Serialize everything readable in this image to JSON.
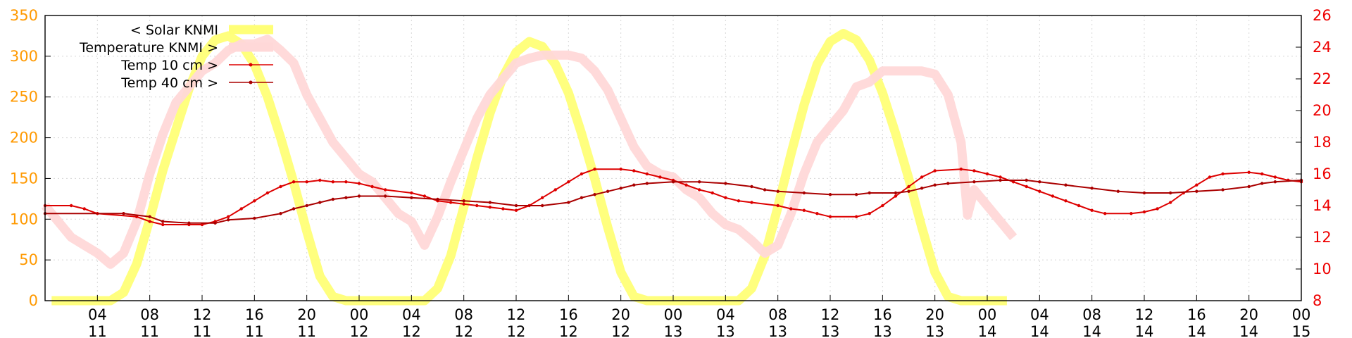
{
  "chart_data": {
    "type": "line",
    "y_left": {
      "range": [
        0,
        350
      ],
      "ticks": [
        0,
        50,
        100,
        150,
        200,
        250,
        300,
        350
      ],
      "color": "#ff9900"
    },
    "y_right": {
      "range": [
        8,
        26
      ],
      "ticks": [
        8,
        10,
        12,
        14,
        16,
        18,
        20,
        22,
        24,
        26
      ],
      "color": "#ee0000"
    },
    "x_range_hours": [
      0,
      96
    ],
    "x_ticks": [
      {
        "hour": 4,
        "time": "04",
        "day": "11"
      },
      {
        "hour": 8,
        "time": "08",
        "day": "11"
      },
      {
        "hour": 12,
        "time": "12",
        "day": "11"
      },
      {
        "hour": 16,
        "time": "16",
        "day": "11"
      },
      {
        "hour": 20,
        "time": "20",
        "day": "11"
      },
      {
        "hour": 24,
        "time": "00",
        "day": "12"
      },
      {
        "hour": 28,
        "time": "04",
        "day": "12"
      },
      {
        "hour": 32,
        "time": "08",
        "day": "12"
      },
      {
        "hour": 36,
        "time": "12",
        "day": "12"
      },
      {
        "hour": 40,
        "time": "16",
        "day": "12"
      },
      {
        "hour": 44,
        "time": "20",
        "day": "12"
      },
      {
        "hour": 48,
        "time": "00",
        "day": "13"
      },
      {
        "hour": 52,
        "time": "04",
        "day": "13"
      },
      {
        "hour": 56,
        "time": "08",
        "day": "13"
      },
      {
        "hour": 60,
        "time": "12",
        "day": "13"
      },
      {
        "hour": 64,
        "time": "16",
        "day": "13"
      },
      {
        "hour": 68,
        "time": "20",
        "day": "13"
      },
      {
        "hour": 72,
        "time": "00",
        "day": "14"
      },
      {
        "hour": 76,
        "time": "04",
        "day": "14"
      },
      {
        "hour": 80,
        "time": "08",
        "day": "14"
      },
      {
        "hour": 84,
        "time": "12",
        "day": "14"
      },
      {
        "hour": 88,
        "time": "16",
        "day": "14"
      },
      {
        "hour": 92,
        "time": "20",
        "day": "14"
      },
      {
        "hour": 96,
        "time": "00",
        "day": "15"
      }
    ],
    "grid": true,
    "legend_position": "top-left",
    "series": [
      {
        "name": "< Solar KNMI",
        "axis": "left",
        "color": "#ffff77",
        "style": "thick-line",
        "points": [
          [
            0.5,
            0
          ],
          [
            5,
            0
          ],
          [
            6,
            10
          ],
          [
            7,
            45
          ],
          [
            8,
            100
          ],
          [
            9,
            160
          ],
          [
            10,
            210
          ],
          [
            11,
            260
          ],
          [
            12,
            300
          ],
          [
            13,
            320
          ],
          [
            14,
            325
          ],
          [
            15,
            315
          ],
          [
            16,
            290
          ],
          [
            17,
            250
          ],
          [
            18,
            200
          ],
          [
            19,
            145
          ],
          [
            20,
            85
          ],
          [
            21,
            30
          ],
          [
            22,
            5
          ],
          [
            23,
            0
          ],
          [
            24,
            0
          ],
          [
            29,
            0
          ],
          [
            30,
            15
          ],
          [
            31,
            55
          ],
          [
            32,
            115
          ],
          [
            33,
            175
          ],
          [
            34,
            230
          ],
          [
            35,
            275
          ],
          [
            36,
            305
          ],
          [
            37,
            318
          ],
          [
            38,
            312
          ],
          [
            39,
            290
          ],
          [
            40,
            255
          ],
          [
            41,
            205
          ],
          [
            42,
            150
          ],
          [
            43,
            90
          ],
          [
            44,
            35
          ],
          [
            45,
            5
          ],
          [
            46,
            0
          ],
          [
            53,
            0
          ],
          [
            54,
            15
          ],
          [
            55,
            55
          ],
          [
            56,
            115
          ],
          [
            57,
            180
          ],
          [
            58,
            240
          ],
          [
            59,
            290
          ],
          [
            60,
            318
          ],
          [
            61,
            328
          ],
          [
            62,
            320
          ],
          [
            63,
            295
          ],
          [
            64,
            255
          ],
          [
            65,
            205
          ],
          [
            66,
            150
          ],
          [
            67,
            90
          ],
          [
            68,
            35
          ],
          [
            69,
            5
          ],
          [
            70,
            0
          ],
          [
            73.5,
            0
          ]
        ]
      },
      {
        "name": "Temperature KNMI >",
        "axis": "right",
        "color": "#ffd8d8",
        "style": "thick-line",
        "points": [
          [
            0,
            14
          ],
          [
            1,
            13
          ],
          [
            2,
            12
          ],
          [
            3,
            11.5
          ],
          [
            4,
            11
          ],
          [
            5,
            10.3
          ],
          [
            6,
            11
          ],
          [
            7,
            13
          ],
          [
            8,
            16
          ],
          [
            9,
            18.5
          ],
          [
            10,
            20.5
          ],
          [
            11,
            21.5
          ],
          [
            12,
            22.5
          ],
          [
            13,
            23
          ],
          [
            14,
            23.8
          ],
          [
            15,
            24.2
          ],
          [
            16,
            24.2
          ],
          [
            17,
            24.5
          ],
          [
            18,
            23.8
          ],
          [
            19,
            23
          ],
          [
            20,
            21
          ],
          [
            21,
            19.5
          ],
          [
            22,
            18
          ],
          [
            23,
            17
          ],
          [
            24,
            16
          ],
          [
            25,
            15.5
          ],
          [
            26,
            14.5
          ],
          [
            27,
            13.5
          ],
          [
            28,
            13
          ],
          [
            29,
            11.5
          ],
          [
            30,
            13.3
          ],
          [
            31,
            15.5
          ],
          [
            32,
            17.5
          ],
          [
            33,
            19.5
          ],
          [
            34,
            21
          ],
          [
            35,
            22
          ],
          [
            36,
            23
          ],
          [
            37,
            23.3
          ],
          [
            38,
            23.5
          ],
          [
            39,
            23.5
          ],
          [
            40,
            23.5
          ],
          [
            41,
            23.3
          ],
          [
            42,
            22.5
          ],
          [
            43,
            21.3
          ],
          [
            44,
            19.5
          ],
          [
            45,
            17.7
          ],
          [
            46,
            16.5
          ],
          [
            47,
            16
          ],
          [
            48,
            15.8
          ],
          [
            49,
            15
          ],
          [
            50,
            14.5
          ],
          [
            51,
            13.5
          ],
          [
            52,
            12.8
          ],
          [
            53,
            12.5
          ],
          [
            54,
            11.8
          ],
          [
            55,
            11
          ],
          [
            56,
            11.5
          ],
          [
            57,
            13.5
          ],
          [
            58,
            16
          ],
          [
            59,
            18
          ],
          [
            60,
            19
          ],
          [
            61,
            20
          ],
          [
            62,
            21.5
          ],
          [
            63,
            21.8
          ],
          [
            64,
            22.5
          ],
          [
            65,
            22.5
          ],
          [
            66,
            22.5
          ],
          [
            67,
            22.5
          ],
          [
            68,
            22.3
          ],
          [
            69,
            21
          ],
          [
            70,
            18
          ],
          [
            70.5,
            13.4
          ],
          [
            71,
            15
          ],
          [
            72,
            14
          ],
          [
            73,
            13
          ],
          [
            74,
            12
          ]
        ]
      },
      {
        "name": "Temp 10 cm >",
        "axis": "right",
        "color": "#dd0000",
        "style": "line-points",
        "points": [
          [
            0,
            14
          ],
          [
            2,
            14
          ],
          [
            3,
            13.8
          ],
          [
            4,
            13.5
          ],
          [
            7,
            13.3
          ],
          [
            8,
            13
          ],
          [
            9,
            12.8
          ],
          [
            11,
            12.8
          ],
          [
            12,
            12.8
          ],
          [
            13,
            13
          ],
          [
            14,
            13.3
          ],
          [
            15,
            13.8
          ],
          [
            16,
            14.3
          ],
          [
            17,
            14.8
          ],
          [
            18,
            15.2
          ],
          [
            19,
            15.5
          ],
          [
            20,
            15.5
          ],
          [
            21,
            15.6
          ],
          [
            22,
            15.5
          ],
          [
            23,
            15.5
          ],
          [
            24,
            15.4
          ],
          [
            25,
            15.2
          ],
          [
            26,
            15
          ],
          [
            28,
            14.8
          ],
          [
            29,
            14.6
          ],
          [
            30,
            14.3
          ],
          [
            31,
            14.2
          ],
          [
            32,
            14.1
          ],
          [
            33,
            14
          ],
          [
            34,
            13.9
          ],
          [
            35,
            13.8
          ],
          [
            36,
            13.7
          ],
          [
            37,
            14
          ],
          [
            38,
            14.5
          ],
          [
            39,
            15
          ],
          [
            40,
            15.5
          ],
          [
            41,
            16
          ],
          [
            42,
            16.3
          ],
          [
            44,
            16.3
          ],
          [
            45,
            16.2
          ],
          [
            46,
            16
          ],
          [
            47,
            15.8
          ],
          [
            48,
            15.6
          ],
          [
            49,
            15.3
          ],
          [
            50,
            15
          ],
          [
            51,
            14.8
          ],
          [
            52,
            14.5
          ],
          [
            53,
            14.3
          ],
          [
            54,
            14.2
          ],
          [
            56,
            14
          ],
          [
            57,
            13.8
          ],
          [
            58,
            13.7
          ],
          [
            59,
            13.5
          ],
          [
            60,
            13.3
          ],
          [
            62,
            13.3
          ],
          [
            63,
            13.5
          ],
          [
            64,
            14
          ],
          [
            65,
            14.6
          ],
          [
            66,
            15.2
          ],
          [
            67,
            15.8
          ],
          [
            68,
            16.2
          ],
          [
            70,
            16.3
          ],
          [
            71,
            16.2
          ],
          [
            72,
            16
          ],
          [
            73,
            15.8
          ],
          [
            74,
            15.5
          ],
          [
            75,
            15.2
          ],
          [
            76,
            14.9
          ],
          [
            77,
            14.6
          ],
          [
            78,
            14.3
          ],
          [
            79,
            14
          ],
          [
            80,
            13.7
          ],
          [
            81,
            13.5
          ],
          [
            83,
            13.5
          ],
          [
            84,
            13.6
          ],
          [
            85,
            13.8
          ],
          [
            86,
            14.2
          ],
          [
            87,
            14.8
          ],
          [
            88,
            15.3
          ],
          [
            89,
            15.8
          ],
          [
            90,
            16
          ],
          [
            92,
            16.1
          ],
          [
            93,
            16
          ],
          [
            94,
            15.8
          ],
          [
            95,
            15.6
          ],
          [
            96,
            15.5
          ]
        ]
      },
      {
        "name": "Temp 40 cm >",
        "axis": "right",
        "color": "#aa0000",
        "style": "line-points",
        "points": [
          [
            0,
            13.5
          ],
          [
            6,
            13.5
          ],
          [
            8,
            13.3
          ],
          [
            9,
            13
          ],
          [
            11,
            12.9
          ],
          [
            13,
            12.9
          ],
          [
            14,
            13.1
          ],
          [
            16,
            13.2
          ],
          [
            18,
            13.5
          ],
          [
            19,
            13.8
          ],
          [
            20,
            14
          ],
          [
            21,
            14.2
          ],
          [
            22,
            14.4
          ],
          [
            23,
            14.5
          ],
          [
            24,
            14.6
          ],
          [
            26,
            14.6
          ],
          [
            28,
            14.5
          ],
          [
            30,
            14.4
          ],
          [
            32,
            14.3
          ],
          [
            34,
            14.2
          ],
          [
            36,
            14
          ],
          [
            38,
            14
          ],
          [
            40,
            14.2
          ],
          [
            41,
            14.5
          ],
          [
            42,
            14.7
          ],
          [
            43,
            14.9
          ],
          [
            44,
            15.1
          ],
          [
            45,
            15.3
          ],
          [
            46,
            15.4
          ],
          [
            48,
            15.5
          ],
          [
            50,
            15.5
          ],
          [
            52,
            15.4
          ],
          [
            54,
            15.2
          ],
          [
            55,
            15
          ],
          [
            56,
            14.9
          ],
          [
            58,
            14.8
          ],
          [
            60,
            14.7
          ],
          [
            62,
            14.7
          ],
          [
            63,
            14.8
          ],
          [
            65,
            14.8
          ],
          [
            66,
            14.9
          ],
          [
            67,
            15.1
          ],
          [
            68,
            15.3
          ],
          [
            69,
            15.4
          ],
          [
            71,
            15.5
          ],
          [
            73,
            15.6
          ],
          [
            75,
            15.6
          ],
          [
            76,
            15.5
          ],
          [
            78,
            15.3
          ],
          [
            80,
            15.1
          ],
          [
            82,
            14.9
          ],
          [
            84,
            14.8
          ],
          [
            86,
            14.8
          ],
          [
            88,
            14.9
          ],
          [
            90,
            15
          ],
          [
            92,
            15.2
          ],
          [
            93,
            15.4
          ],
          [
            94,
            15.5
          ],
          [
            96,
            15.6
          ]
        ]
      }
    ]
  }
}
